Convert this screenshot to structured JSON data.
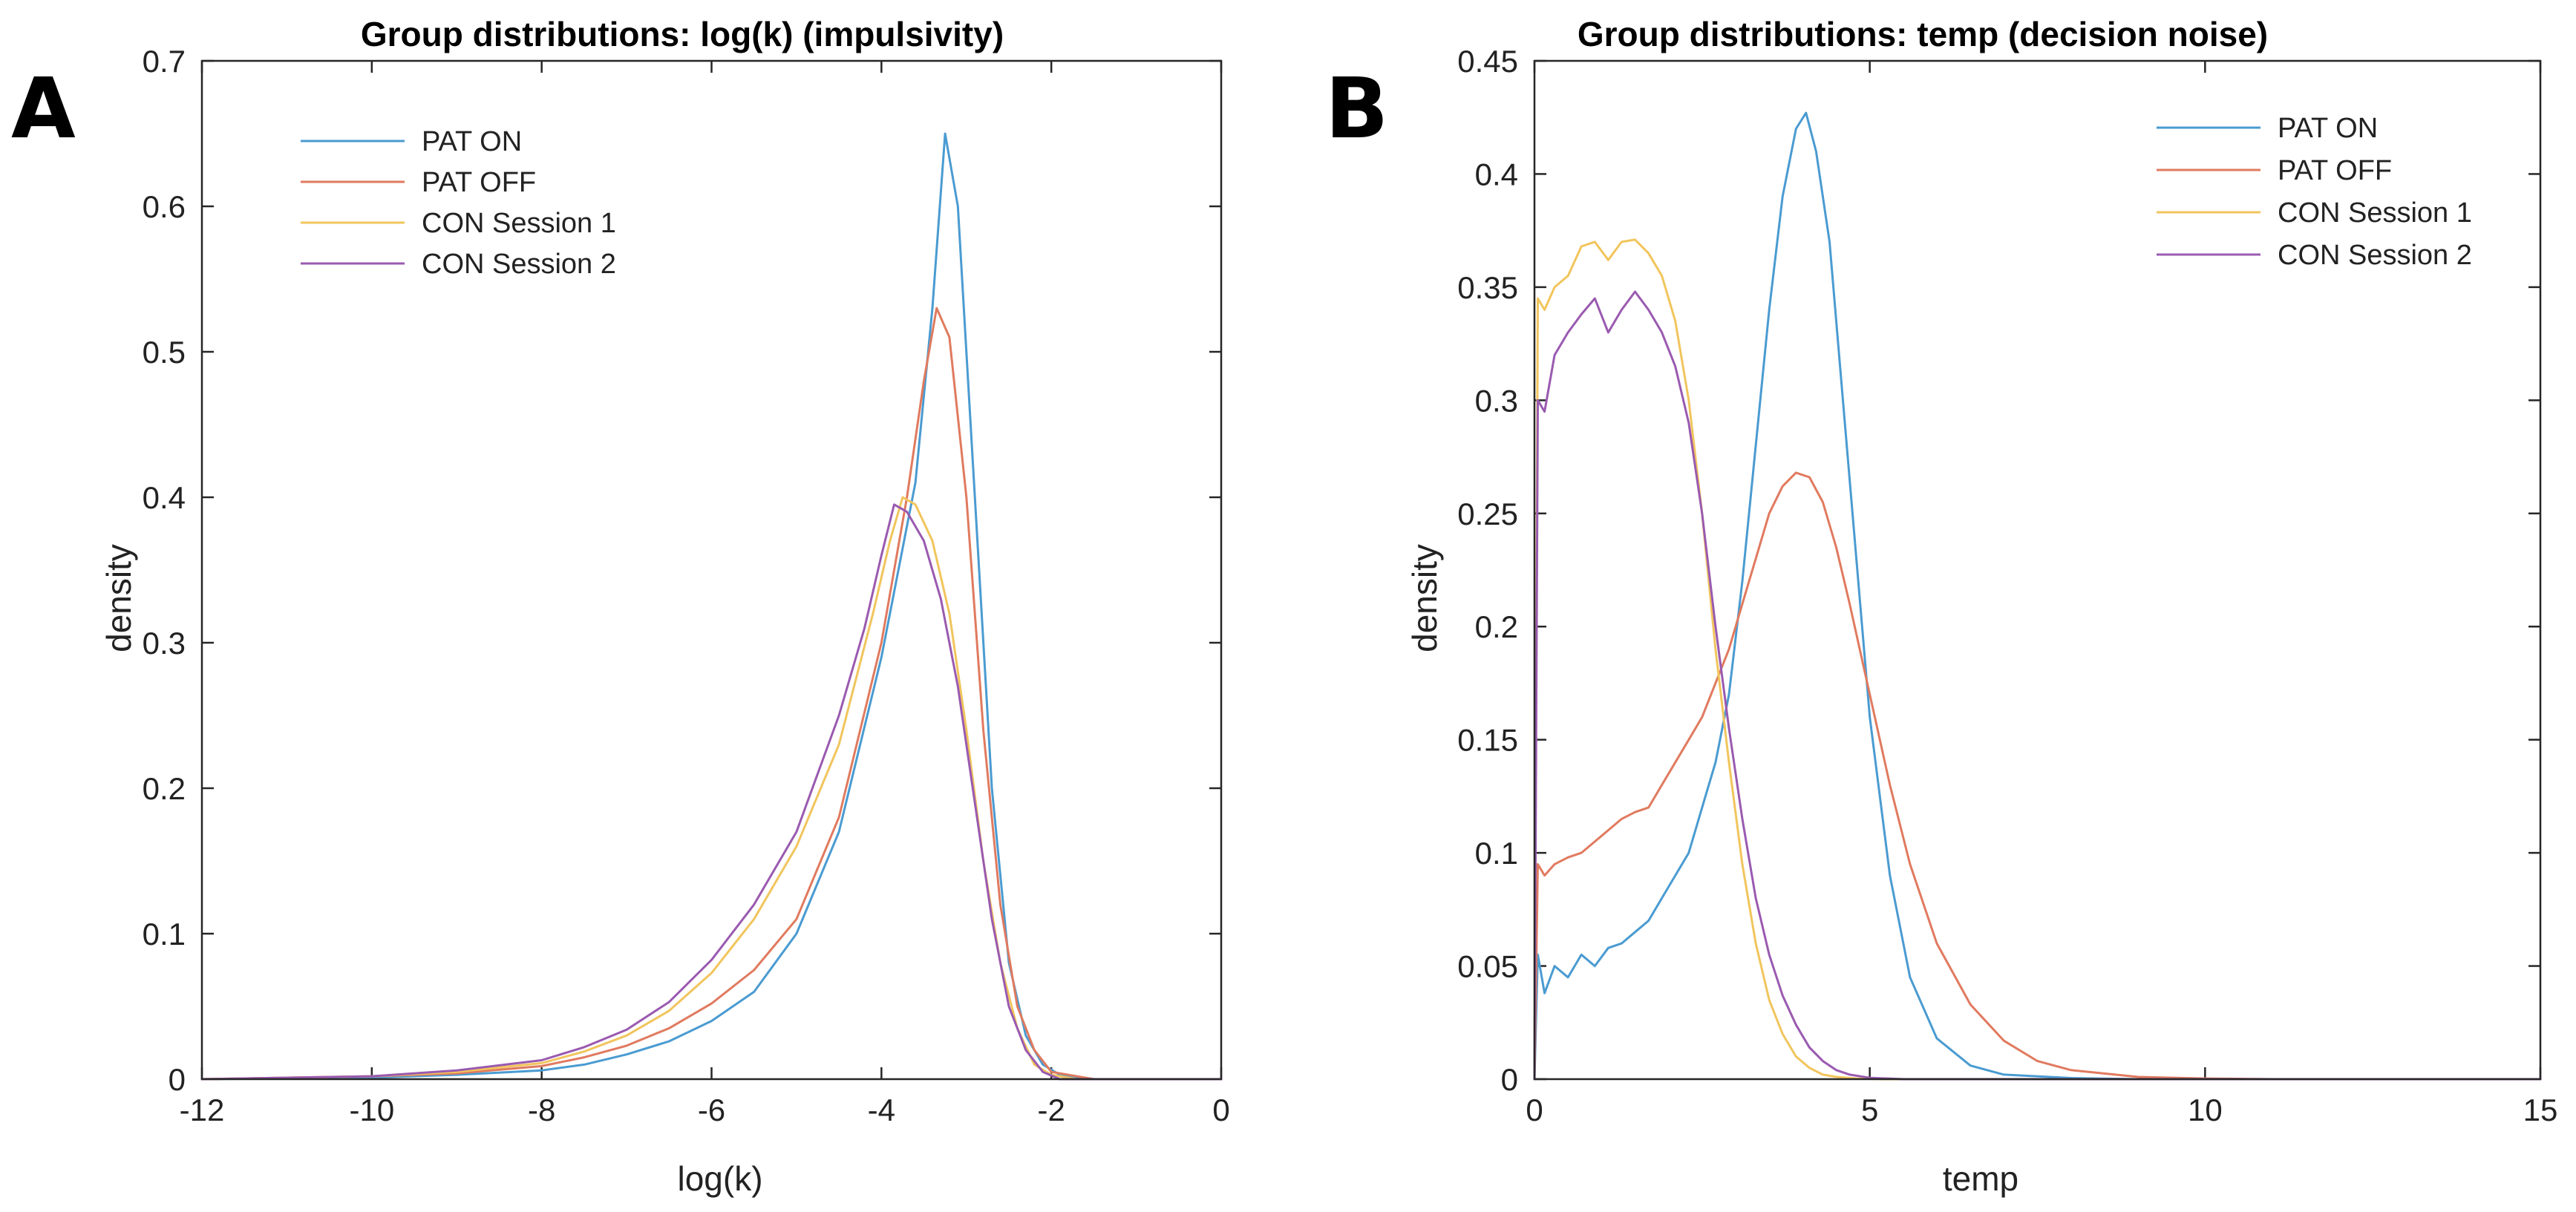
{
  "chart_data": [
    {
      "type": "line",
      "panel_label": "A",
      "title": "Group distributions: log(k) (impulsivity)",
      "xlabel": "log(k)",
      "ylabel": "density",
      "xlim": [
        -12,
        0
      ],
      "ylim": [
        0,
        0.7
      ],
      "xticks": [
        -12,
        -10,
        -8,
        -6,
        -4,
        -2,
        0
      ],
      "yticks": [
        0,
        0.1,
        0.2,
        0.3,
        0.4,
        0.5,
        0.6,
        0.7
      ],
      "legend_position": "top-left",
      "series": [
        {
          "name": "PAT ON",
          "color": "#4a9bd1",
          "x": [
            -12,
            -10,
            -9,
            -8,
            -7.5,
            -7,
            -6.5,
            -6,
            -5.5,
            -5,
            -4.5,
            -4,
            -3.6,
            -3.4,
            -3.25,
            -3.1,
            -2.9,
            -2.7,
            -2.5,
            -2.3,
            -2.1,
            -1.9,
            -1.5,
            0
          ],
          "y": [
            0,
            0.001,
            0.003,
            0.006,
            0.01,
            0.017,
            0.026,
            0.04,
            0.06,
            0.1,
            0.17,
            0.29,
            0.41,
            0.53,
            0.65,
            0.6,
            0.4,
            0.2,
            0.08,
            0.03,
            0.01,
            0.003,
            0,
            0
          ]
        },
        {
          "name": "PAT OFF",
          "color": "#e07a5f",
          "x": [
            -12,
            -10,
            -9,
            -8,
            -7.5,
            -7,
            -6.5,
            -6,
            -5.5,
            -5,
            -4.5,
            -4,
            -3.7,
            -3.5,
            -3.35,
            -3.2,
            -3.0,
            -2.8,
            -2.6,
            -2.4,
            -2.2,
            -2.0,
            -1.5,
            0
          ],
          "y": [
            0,
            0.002,
            0.004,
            0.009,
            0.015,
            0.023,
            0.035,
            0.052,
            0.075,
            0.11,
            0.18,
            0.3,
            0.4,
            0.48,
            0.53,
            0.51,
            0.4,
            0.24,
            0.12,
            0.05,
            0.02,
            0.005,
            0,
            0
          ]
        },
        {
          "name": "CON Session 1",
          "color": "#f1c55d",
          "x": [
            -12,
            -10,
            -9,
            -8,
            -7.5,
            -7,
            -6.5,
            -6,
            -5.5,
            -5,
            -4.5,
            -4.1,
            -3.9,
            -3.75,
            -3.6,
            -3.4,
            -3.2,
            -3.0,
            -2.8,
            -2.6,
            -2.4,
            -2.2,
            -2.0,
            -1.7,
            0
          ],
          "y": [
            0,
            0.002,
            0.005,
            0.011,
            0.019,
            0.03,
            0.047,
            0.073,
            0.11,
            0.16,
            0.23,
            0.32,
            0.37,
            0.4,
            0.395,
            0.37,
            0.32,
            0.24,
            0.15,
            0.08,
            0.035,
            0.01,
            0.003,
            0,
            0
          ]
        },
        {
          "name": "CON Session 2",
          "color": "#9a5ab0",
          "x": [
            -12,
            -10,
            -9,
            -8,
            -7.5,
            -7,
            -6.5,
            -6,
            -5.5,
            -5,
            -4.5,
            -4.2,
            -4.0,
            -3.85,
            -3.7,
            -3.5,
            -3.3,
            -3.1,
            -2.9,
            -2.7,
            -2.5,
            -2.3,
            -2.1,
            -1.9,
            0
          ],
          "y": [
            0,
            0.002,
            0.006,
            0.013,
            0.022,
            0.034,
            0.053,
            0.082,
            0.12,
            0.17,
            0.25,
            0.31,
            0.36,
            0.395,
            0.39,
            0.37,
            0.33,
            0.27,
            0.19,
            0.11,
            0.05,
            0.02,
            0.005,
            0,
            0
          ]
        }
      ]
    },
    {
      "type": "line",
      "panel_label": "B",
      "title": "Group distributions: temp (decision noise)",
      "xlabel": "temp",
      "ylabel": "density",
      "xlim": [
        0,
        15
      ],
      "ylim": [
        0,
        0.45
      ],
      "xticks": [
        0,
        5,
        10,
        15
      ],
      "yticks": [
        0,
        0.05,
        0.1,
        0.15,
        0.2,
        0.25,
        0.3,
        0.35,
        0.4,
        0.45
      ],
      "legend_position": "top-right",
      "series": [
        {
          "name": "PAT ON",
          "color": "#4a9bd1",
          "x": [
            0,
            0.05,
            0.15,
            0.3,
            0.5,
            0.7,
            0.9,
            1.1,
            1.3,
            1.5,
            1.7,
            1.9,
            2.1,
            2.3,
            2.5,
            2.7,
            2.9,
            3.1,
            3.3,
            3.5,
            3.7,
            3.9,
            4.05,
            4.2,
            4.4,
            4.6,
            4.8,
            5.0,
            5.3,
            5.6,
            6.0,
            6.5,
            7.0,
            8.0,
            9.0,
            10.0,
            15
          ],
          "y": [
            0,
            0.055,
            0.038,
            0.05,
            0.045,
            0.055,
            0.05,
            0.058,
            0.06,
            0.065,
            0.07,
            0.08,
            0.09,
            0.1,
            0.12,
            0.14,
            0.17,
            0.22,
            0.28,
            0.34,
            0.39,
            0.42,
            0.427,
            0.41,
            0.37,
            0.3,
            0.23,
            0.16,
            0.09,
            0.045,
            0.018,
            0.006,
            0.002,
            0.0005,
            0,
            0,
            0
          ]
        },
        {
          "name": "PAT OFF",
          "color": "#e07a5f",
          "x": [
            0,
            0.05,
            0.15,
            0.3,
            0.5,
            0.7,
            0.9,
            1.1,
            1.3,
            1.5,
            1.7,
            1.9,
            2.1,
            2.3,
            2.5,
            2.7,
            2.9,
            3.1,
            3.3,
            3.5,
            3.7,
            3.9,
            4.1,
            4.3,
            4.5,
            4.7,
            5.0,
            5.3,
            5.6,
            6.0,
            6.5,
            7.0,
            7.5,
            8.0,
            9.0,
            10.0,
            11.0,
            15
          ],
          "y": [
            0,
            0.095,
            0.09,
            0.095,
            0.098,
            0.1,
            0.105,
            0.11,
            0.115,
            0.118,
            0.12,
            0.13,
            0.14,
            0.15,
            0.16,
            0.175,
            0.19,
            0.21,
            0.23,
            0.25,
            0.262,
            0.268,
            0.266,
            0.255,
            0.235,
            0.21,
            0.17,
            0.13,
            0.095,
            0.06,
            0.033,
            0.017,
            0.008,
            0.004,
            0.001,
            0.0003,
            0,
            0
          ]
        },
        {
          "name": "CON Session 1",
          "color": "#f1c55d",
          "x": [
            0,
            0.05,
            0.15,
            0.3,
            0.5,
            0.7,
            0.9,
            1.1,
            1.3,
            1.5,
            1.7,
            1.9,
            2.1,
            2.3,
            2.5,
            2.7,
            2.9,
            3.1,
            3.3,
            3.5,
            3.7,
            3.9,
            4.1,
            4.3,
            4.5,
            4.8,
            5.2,
            6.0,
            15
          ],
          "y": [
            0,
            0.345,
            0.34,
            0.35,
            0.355,
            0.368,
            0.37,
            0.362,
            0.37,
            0.371,
            0.365,
            0.355,
            0.335,
            0.3,
            0.25,
            0.19,
            0.14,
            0.095,
            0.06,
            0.035,
            0.02,
            0.01,
            0.005,
            0.002,
            0.001,
            0.0003,
            0,
            0,
            0
          ]
        },
        {
          "name": "CON Session 2",
          "color": "#9a5ab0",
          "x": [
            0,
            0.05,
            0.15,
            0.3,
            0.5,
            0.7,
            0.9,
            1.1,
            1.3,
            1.5,
            1.7,
            1.9,
            2.1,
            2.3,
            2.5,
            2.7,
            2.9,
            3.1,
            3.3,
            3.5,
            3.7,
            3.9,
            4.1,
            4.3,
            4.5,
            4.7,
            5.0,
            5.5,
            6.0,
            15
          ],
          "y": [
            0,
            0.3,
            0.295,
            0.32,
            0.33,
            0.338,
            0.345,
            0.33,
            0.34,
            0.348,
            0.34,
            0.33,
            0.315,
            0.29,
            0.25,
            0.2,
            0.155,
            0.115,
            0.08,
            0.055,
            0.037,
            0.024,
            0.014,
            0.008,
            0.004,
            0.002,
            0.0006,
            0,
            0,
            0
          ]
        }
      ]
    }
  ]
}
